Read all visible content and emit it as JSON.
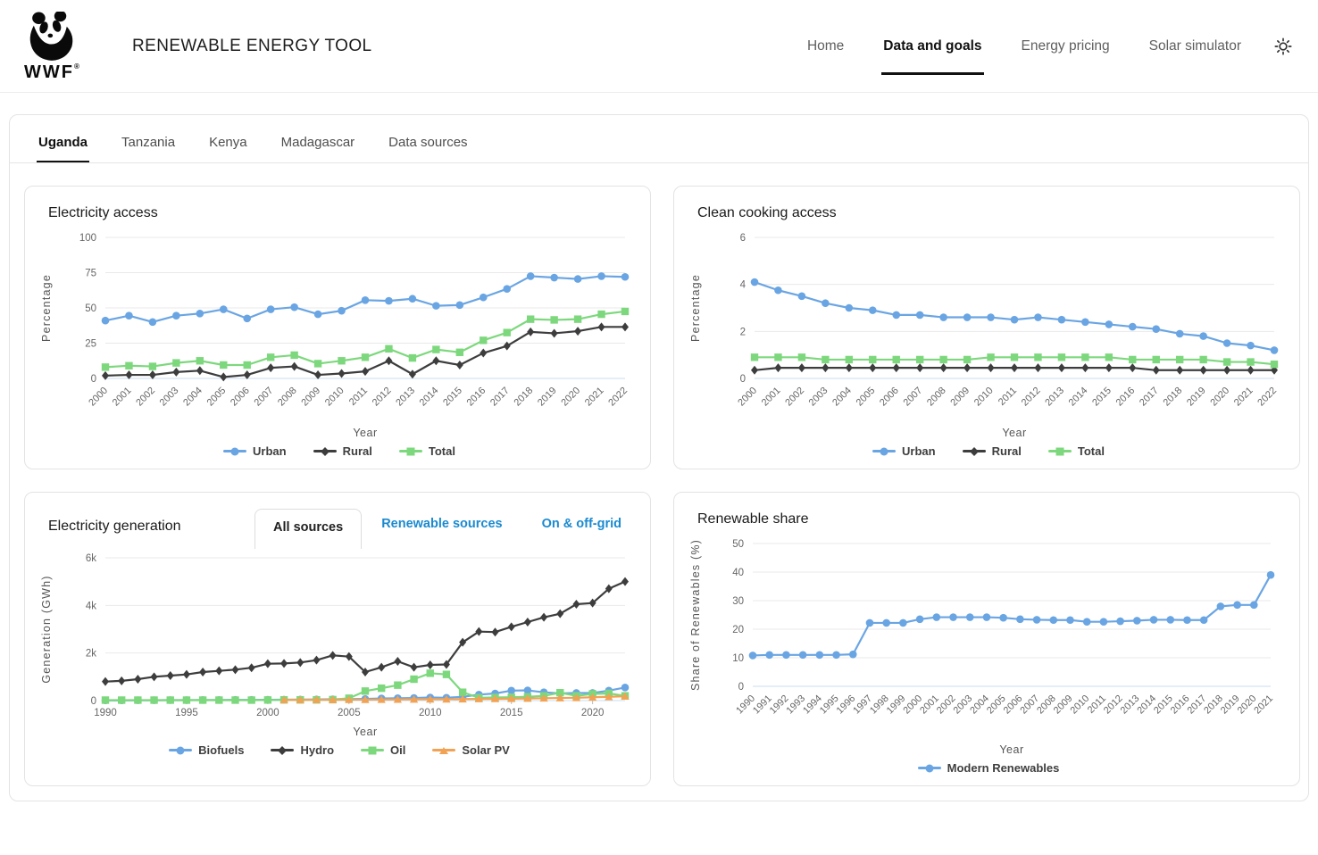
{
  "header": {
    "logo_text": "WWF",
    "title": "RENEWABLE ENERGY TOOL",
    "nav": [
      {
        "label": "Home",
        "active": false
      },
      {
        "label": "Data and goals",
        "active": true
      },
      {
        "label": "Energy pricing",
        "active": false
      },
      {
        "label": "Solar simulator",
        "active": false
      }
    ],
    "theme_toggle_icon": "sun-icon"
  },
  "country_tabs": [
    {
      "label": "Uganda",
      "active": true
    },
    {
      "label": "Tanzania",
      "active": false
    },
    {
      "label": "Kenya",
      "active": false
    },
    {
      "label": "Madagascar",
      "active": false
    },
    {
      "label": "Data sources",
      "active": false
    }
  ],
  "generation_subtabs": [
    {
      "label": "All sources",
      "active": true
    },
    {
      "label": "Renewable sources",
      "active": false
    },
    {
      "label": "On & off-grid",
      "active": false
    }
  ],
  "colors": {
    "series_blue": "#6aa5e3",
    "series_green": "#7dd87d",
    "series_dark": "#3d3d3d",
    "series_orange": "#f2a254",
    "link_blue": "#1a8ad0",
    "grid": "#e9e9e9",
    "zero_axis": "#c9ddf2",
    "tick_text": "#666666",
    "axis_label_text": "#555555"
  },
  "chart_data": [
    {
      "id": "electricity-access",
      "type": "line",
      "title": "Electricity access",
      "xlabel": "Year",
      "ylabel": "Percentage",
      "ylim": [
        0,
        100
      ],
      "yticks": [
        0,
        25,
        50,
        75,
        100
      ],
      "ytick_labels": [
        "0",
        "25",
        "50",
        "75",
        "100"
      ],
      "x_tick_rotated": true,
      "legend_position": "bottom",
      "categories": [
        "2000",
        "2001",
        "2002",
        "2003",
        "2004",
        "2005",
        "2006",
        "2007",
        "2008",
        "2009",
        "2010",
        "2011",
        "2012",
        "2013",
        "2014",
        "2015",
        "2016",
        "2017",
        "2018",
        "2019",
        "2020",
        "2021",
        "2022"
      ],
      "series": [
        {
          "name": "Urban",
          "color": "#6aa5e3",
          "marker": "circle",
          "values": [
            41,
            44.5,
            40,
            44.5,
            46,
            49,
            42.5,
            49,
            50.5,
            45.5,
            48,
            55.5,
            55,
            56.5,
            51.5,
            52,
            57.5,
            63.5,
            72.5,
            71.5,
            70.5,
            72.5,
            72
          ]
        },
        {
          "name": "Rural",
          "color": "#3d3d3d",
          "marker": "diamond",
          "values": [
            2,
            2.5,
            2.5,
            4.5,
            5.5,
            1,
            2.5,
            7.5,
            8.5,
            2.5,
            3.5,
            5,
            12.5,
            3,
            12.5,
            9.5,
            18,
            23,
            33,
            32,
            33.5,
            36.5,
            36.5
          ]
        },
        {
          "name": "Total",
          "color": "#7dd87d",
          "marker": "square",
          "values": [
            8,
            9,
            8.5,
            11,
            12.5,
            9.5,
            9.5,
            15,
            16.5,
            10.5,
            12.5,
            15,
            21,
            14.5,
            20.5,
            18.5,
            27,
            32.5,
            42,
            41.5,
            42,
            45.5,
            47.5
          ]
        }
      ]
    },
    {
      "id": "clean-cooking",
      "type": "line",
      "title": "Clean cooking access",
      "xlabel": "Year",
      "ylabel": "Percentage",
      "ylim": [
        0,
        6
      ],
      "yticks": [
        0,
        2,
        4,
        6
      ],
      "ytick_labels": [
        "0",
        "2",
        "4",
        "6"
      ],
      "x_tick_rotated": true,
      "legend_position": "bottom",
      "categories": [
        "2000",
        "2001",
        "2002",
        "2003",
        "2004",
        "2005",
        "2006",
        "2007",
        "2008",
        "2009",
        "2010",
        "2011",
        "2012",
        "2013",
        "2014",
        "2015",
        "2016",
        "2017",
        "2018",
        "2019",
        "2020",
        "2021",
        "2022"
      ],
      "series": [
        {
          "name": "Urban",
          "color": "#6aa5e3",
          "marker": "circle",
          "values": [
            4.1,
            3.75,
            3.5,
            3.2,
            3.0,
            2.9,
            2.7,
            2.7,
            2.6,
            2.6,
            2.6,
            2.5,
            2.6,
            2.5,
            2.4,
            2.3,
            2.2,
            2.1,
            1.9,
            1.8,
            1.5,
            1.4,
            1.2
          ]
        },
        {
          "name": "Rural",
          "color": "#3d3d3d",
          "marker": "diamond",
          "values": [
            0.35,
            0.45,
            0.45,
            0.45,
            0.45,
            0.45,
            0.45,
            0.45,
            0.45,
            0.45,
            0.45,
            0.45,
            0.45,
            0.45,
            0.45,
            0.45,
            0.45,
            0.35,
            0.35,
            0.35,
            0.35,
            0.35,
            0.35
          ]
        },
        {
          "name": "Total",
          "color": "#7dd87d",
          "marker": "square",
          "values": [
            0.9,
            0.9,
            0.9,
            0.8,
            0.8,
            0.8,
            0.8,
            0.8,
            0.8,
            0.8,
            0.9,
            0.9,
            0.9,
            0.9,
            0.9,
            0.9,
            0.8,
            0.8,
            0.8,
            0.8,
            0.7,
            0.7,
            0.6
          ]
        }
      ]
    },
    {
      "id": "electricity-generation",
      "type": "line",
      "title": "Electricity generation",
      "xlabel": "Year",
      "ylabel": "Generation (GWh)",
      "ylim": [
        0,
        6000
      ],
      "yticks": [
        0,
        2000,
        4000,
        6000
      ],
      "ytick_labels": [
        "0",
        "2k",
        "4k",
        "6k"
      ],
      "x_tick_rotated": false,
      "x_tick_labels": [
        "1990",
        "1995",
        "2000",
        "2005",
        "2010",
        "2015",
        "2020"
      ],
      "legend_position": "bottom",
      "categories": [
        "1990",
        "1991",
        "1992",
        "1993",
        "1994",
        "1995",
        "1996",
        "1997",
        "1998",
        "1999",
        "2000",
        "2001",
        "2002",
        "2003",
        "2004",
        "2005",
        "2006",
        "2007",
        "2008",
        "2009",
        "2010",
        "2011",
        "2012",
        "2013",
        "2014",
        "2015",
        "2016",
        "2017",
        "2018",
        "2019",
        "2020",
        "2021",
        "2022"
      ],
      "series": [
        {
          "name": "Biofuels",
          "color": "#6aa5e3",
          "marker": "circle",
          "values": [
            10,
            10,
            15,
            15,
            20,
            20,
            25,
            25,
            30,
            30,
            35,
            40,
            45,
            50,
            55,
            60,
            70,
            90,
            100,
            110,
            130,
            120,
            160,
            250,
            300,
            420,
            430,
            350,
            300,
            320,
            320,
            420,
            550
          ]
        },
        {
          "name": "Hydro",
          "color": "#3d3d3d",
          "marker": "diamond",
          "values": [
            800,
            830,
            900,
            1000,
            1050,
            1100,
            1200,
            1250,
            1300,
            1380,
            1550,
            1560,
            1600,
            1700,
            1900,
            1850,
            1200,
            1400,
            1650,
            1400,
            1500,
            1520,
            2450,
            2900,
            2880,
            3100,
            3300,
            3500,
            3650,
            4050,
            4100,
            4700,
            5000
          ]
        },
        {
          "name": "Oil",
          "color": "#7dd87d",
          "marker": "square",
          "values": [
            20,
            20,
            20,
            20,
            20,
            20,
            20,
            20,
            20,
            20,
            25,
            30,
            30,
            30,
            40,
            100,
            400,
            520,
            650,
            900,
            1150,
            1100,
            350,
            120,
            130,
            140,
            160,
            200,
            330,
            200,
            280,
            300,
            200
          ]
        },
        {
          "name": "Solar PV",
          "color": "#f2a254",
          "marker": "triangle",
          "values": [
            null,
            null,
            null,
            null,
            null,
            null,
            null,
            null,
            null,
            null,
            null,
            30,
            30,
            35,
            35,
            40,
            40,
            45,
            50,
            55,
            60,
            60,
            65,
            70,
            75,
            80,
            90,
            100,
            110,
            120,
            140,
            160,
            180
          ]
        }
      ]
    },
    {
      "id": "renewable-share",
      "type": "line",
      "title": "Renewable share",
      "xlabel": "Year",
      "ylabel": "Share of Renewables (%)",
      "ylim": [
        0,
        50
      ],
      "yticks": [
        0,
        10,
        20,
        30,
        40,
        50
      ],
      "ytick_labels": [
        "0",
        "10",
        "20",
        "30",
        "40",
        "50"
      ],
      "x_tick_rotated": true,
      "legend_position": "bottom",
      "categories": [
        "1990",
        "1991",
        "1992",
        "1993",
        "1994",
        "1995",
        "1996",
        "1997",
        "1998",
        "1999",
        "2000",
        "2001",
        "2002",
        "2003",
        "2004",
        "2005",
        "2006",
        "2007",
        "2008",
        "2009",
        "2010",
        "2011",
        "2012",
        "2013",
        "2014",
        "2015",
        "2016",
        "2017",
        "2018",
        "2019",
        "2020",
        "2021"
      ],
      "series": [
        {
          "name": "Modern Renewables",
          "color": "#6aa5e3",
          "marker": "circle",
          "values": [
            10.8,
            11,
            11,
            11,
            11,
            11,
            11.2,
            22.2,
            22.2,
            22.2,
            23.5,
            24.2,
            24.2,
            24.2,
            24.2,
            24,
            23.5,
            23.3,
            23.2,
            23.2,
            22.6,
            22.6,
            22.8,
            23,
            23.3,
            23.3,
            23.2,
            23.2,
            28,
            28.5,
            28.5,
            39
          ]
        }
      ]
    }
  ]
}
